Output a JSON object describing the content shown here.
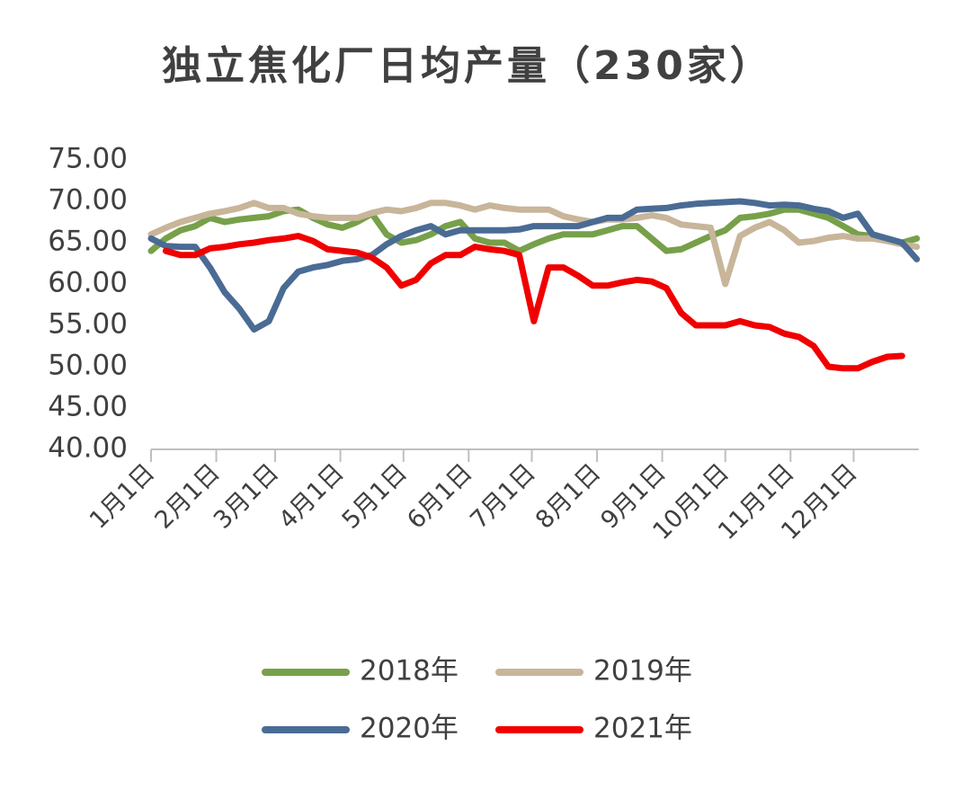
{
  "chart_data": {
    "type": "line",
    "title": "独立焦化厂日均产量（230家）",
    "x": [
      1,
      8,
      15,
      22,
      29,
      36,
      43,
      50,
      57,
      64,
      71,
      78,
      85,
      92,
      99,
      106,
      113,
      120,
      127,
      134,
      141,
      148,
      155,
      162,
      169,
      176,
      183,
      190,
      197,
      204,
      211,
      218,
      225,
      232,
      239,
      246,
      253,
      260,
      267,
      274,
      281,
      288,
      295,
      302,
      309,
      316,
      323,
      330,
      337,
      344,
      351,
      358,
      365
    ],
    "xlim": [
      1,
      366
    ],
    "xticks": [
      {
        "value": 1,
        "label": "1月1日"
      },
      {
        "value": 32,
        "label": "2月1日"
      },
      {
        "value": 60,
        "label": "3月1日"
      },
      {
        "value": 91,
        "label": "4月1日"
      },
      {
        "value": 121,
        "label": "5月1日"
      },
      {
        "value": 152,
        "label": "6月1日"
      },
      {
        "value": 182,
        "label": "7月1日"
      },
      {
        "value": 213,
        "label": "8月1日"
      },
      {
        "value": 244,
        "label": "9月1日"
      },
      {
        "value": 274,
        "label": "10月1日"
      },
      {
        "value": 305,
        "label": "11月1日"
      },
      {
        "value": 335,
        "label": "12月1日"
      }
    ],
    "ylim": [
      40,
      75
    ],
    "yticks": [
      {
        "value": 40,
        "label": "40.00"
      },
      {
        "value": 45,
        "label": "45.00"
      },
      {
        "value": 50,
        "label": "50.00"
      },
      {
        "value": 55,
        "label": "55.00"
      },
      {
        "value": 60,
        "label": "60.00"
      },
      {
        "value": 65,
        "label": "65.00"
      },
      {
        "value": 70,
        "label": "70.00"
      },
      {
        "value": 75,
        "label": "75.00"
      }
    ],
    "grid": false,
    "series": [
      {
        "name": "2018年",
        "color": "#77a04a",
        "values": [
          64,
          65.5,
          66.5,
          67,
          68,
          67.5,
          67.8,
          68,
          68.2,
          68.8,
          69,
          68,
          67.2,
          66.8,
          67.5,
          68.5,
          66,
          65,
          65.3,
          66,
          67,
          67.5,
          65.5,
          65,
          65,
          64,
          64.8,
          65.5,
          66,
          66,
          66,
          66.5,
          67,
          67,
          65.5,
          64,
          64.2,
          65,
          65.8,
          66.5,
          68,
          68.2,
          68.5,
          69,
          69,
          68.5,
          68,
          67,
          66,
          65.8,
          65.2,
          65,
          65.5
        ]
      },
      {
        "name": "2019年",
        "color": "#c8b59a",
        "values": [
          66,
          66.8,
          67.5,
          68,
          68.5,
          68.8,
          69.2,
          69.8,
          69.2,
          69.2,
          68.5,
          68.2,
          68,
          68,
          68,
          68.6,
          69,
          68.8,
          69.2,
          69.8,
          69.8,
          69.5,
          69,
          69.5,
          69.2,
          69,
          69,
          69,
          68.2,
          67.8,
          67.5,
          67.8,
          67.8,
          68,
          68.3,
          68,
          67.2,
          67,
          66.8,
          60,
          65.8,
          66.8,
          67.5,
          66.5,
          65,
          65.2,
          65.6,
          65.8,
          65.5,
          65.5,
          65.2,
          64.8,
          64.5
        ]
      },
      {
        "name": "2020年",
        "color": "#4a6b94",
        "values": [
          65.5,
          64.6,
          64.5,
          64.5,
          62,
          59,
          57,
          54.5,
          55.5,
          59.5,
          61.5,
          62,
          62.3,
          62.8,
          63,
          63.5,
          64.8,
          65.8,
          66.5,
          67,
          66,
          66.5,
          66.5,
          66.5,
          66.5,
          66.6,
          67,
          67,
          67,
          67,
          67.5,
          68,
          68,
          69,
          69.1,
          69.2,
          69.5,
          69.7,
          69.8,
          69.9,
          70,
          69.8,
          69.5,
          69.6,
          69.5,
          69.1,
          68.8,
          68,
          68.5,
          66,
          65.5,
          65,
          63
        ]
      },
      {
        "name": "2021年",
        "color": "#f00000",
        "values": [
          null,
          64,
          63.5,
          63.5,
          64.3,
          64.5,
          64.8,
          65,
          65.3,
          65.5,
          65.8,
          65.2,
          64.2,
          64,
          63.8,
          63.2,
          62,
          59.8,
          60.5,
          62.5,
          63.5,
          63.5,
          64.5,
          64.2,
          64,
          63.5,
          55.5,
          62,
          62,
          61,
          59.8,
          59.8,
          60.2,
          60.5,
          60.3,
          59.5,
          56.5,
          55,
          55,
          55,
          55.5,
          55,
          54.8,
          54,
          53.6,
          52.5,
          50,
          49.8,
          49.8,
          50.6,
          51.2,
          51.3,
          null
        ]
      }
    ]
  }
}
